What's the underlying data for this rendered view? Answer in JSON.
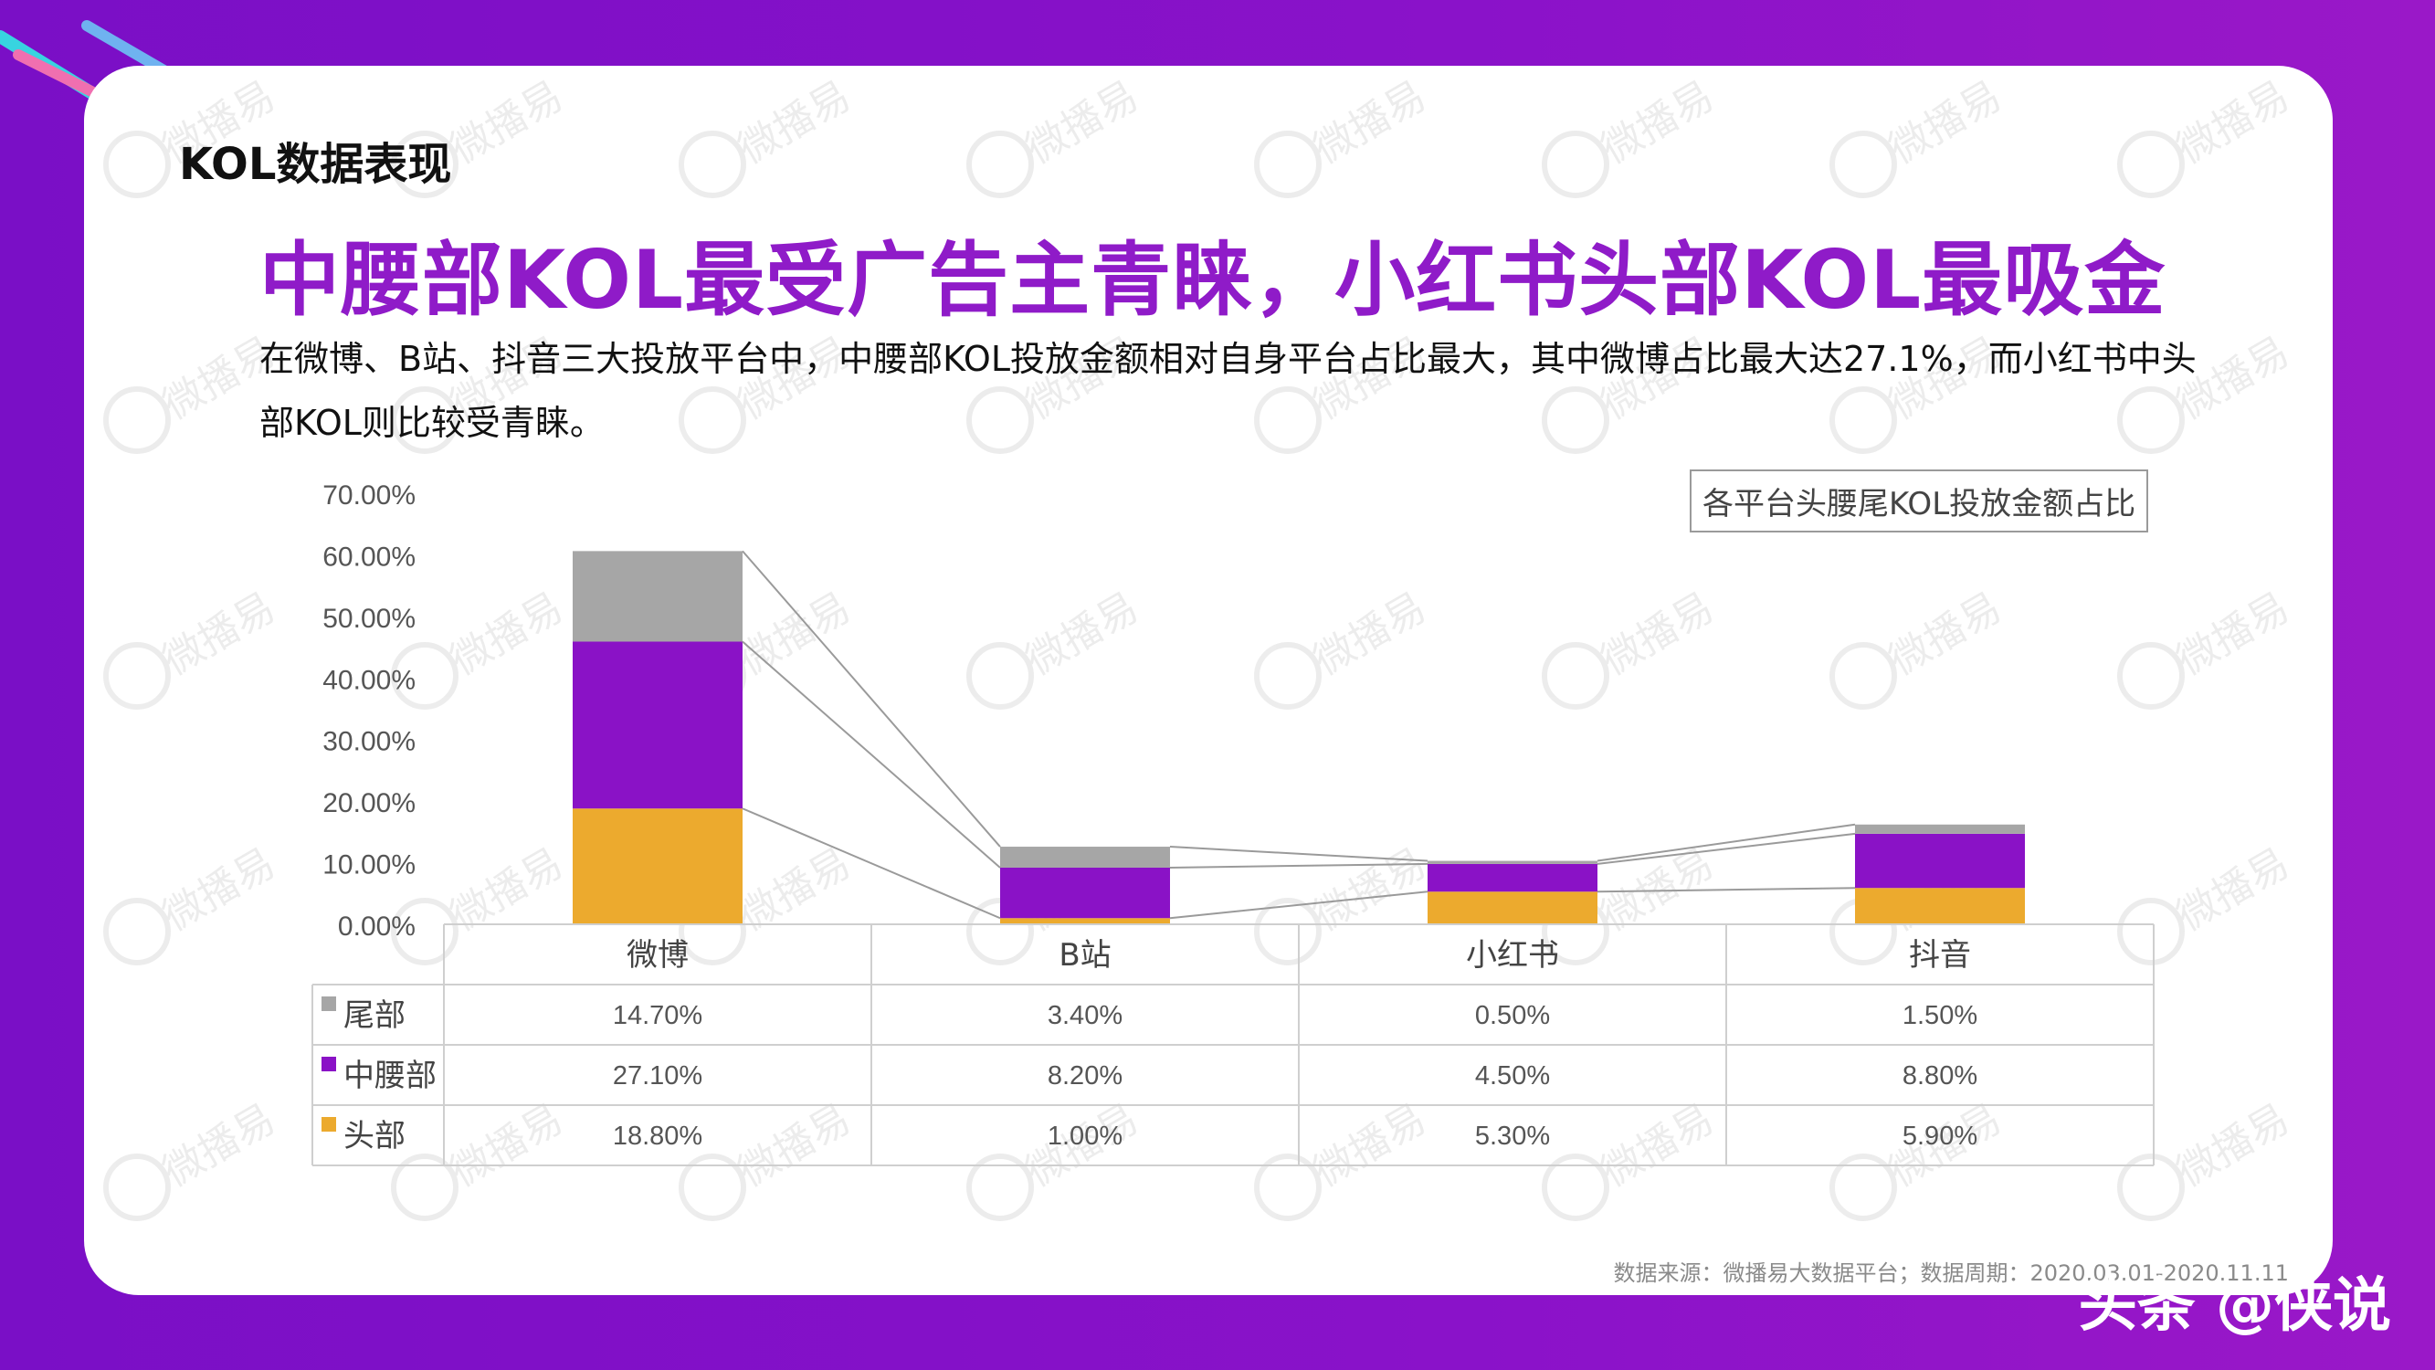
{
  "header": {
    "section_title": "KOL数据表现",
    "headline": "中腰部KOL最受广告主青睐，小红书头部KOL最吸金",
    "description": "在微博、B站、抖音三大投放平台中，中腰部KOL投放金额相对自身平台占比最大，其中微博占比最大达27.1%，而小红书中头部KOL则比较受青睐。"
  },
  "chart_data": {
    "type": "bar",
    "stacked": true,
    "title": "各平台头腰尾KOL投放金额占比",
    "categories": [
      "微博",
      "B站",
      "小红书",
      "抖音"
    ],
    "ylim": [
      0,
      70
    ],
    "yticks": [
      "0.00%",
      "10.00%",
      "20.00%",
      "30.00%",
      "40.00%",
      "50.00%",
      "60.00%",
      "70.00%"
    ],
    "series": [
      {
        "name": "头部",
        "color": "#ecaa2e",
        "values": [
          18.8,
          1.0,
          5.3,
          5.9
        ],
        "labels": [
          "18.80%",
          "1.00%",
          "5.30%",
          "5.90%"
        ]
      },
      {
        "name": "中腰部",
        "color": "#8a12c6",
        "values": [
          27.1,
          8.2,
          4.5,
          8.8
        ],
        "labels": [
          "27.10%",
          "8.20%",
          "4.50%",
          "8.80%"
        ]
      },
      {
        "name": "尾部",
        "color": "#a6a6a6",
        "values": [
          14.7,
          3.4,
          0.5,
          1.5
        ],
        "labels": [
          "14.70%",
          "3.40%",
          "0.50%",
          "1.50%"
        ]
      }
    ],
    "table_order": [
      "尾部",
      "中腰部",
      "头部"
    ],
    "series_lines": true,
    "grid": false
  },
  "footer": {
    "source": "数据来源：微播易大数据平台；数据周期：2020.03.01-2020.11.11",
    "brand": "头条 @侠说"
  },
  "watermark": {
    "text": "微播易"
  }
}
